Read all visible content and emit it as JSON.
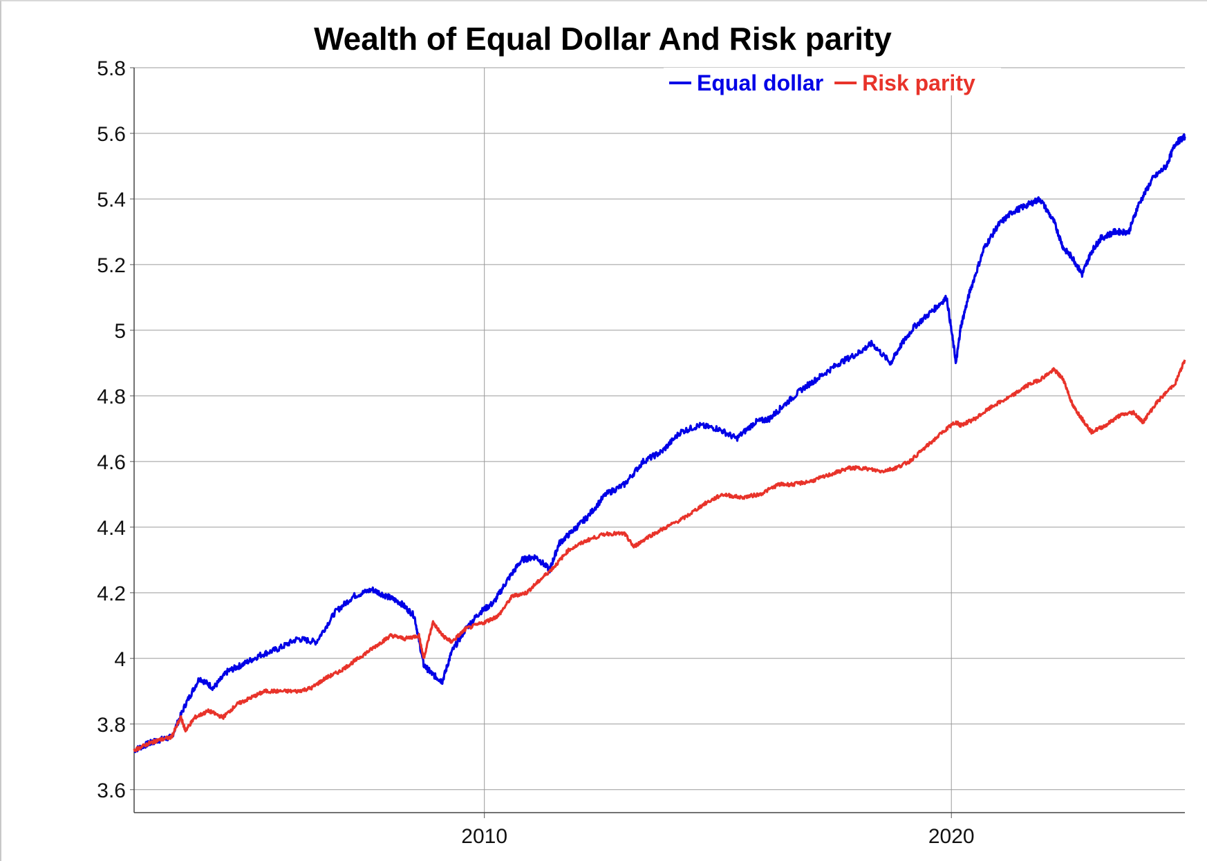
{
  "chart_data": {
    "type": "line",
    "title": "Wealth of Equal Dollar And Risk parity",
    "xlabel": "",
    "ylabel": "",
    "xlim": [
      2002.5,
      2025.0
    ],
    "ylim": [
      3.53,
      5.8
    ],
    "y_ticks": [
      3.6,
      3.8,
      4.0,
      4.2,
      4.4,
      4.6,
      4.8,
      5.0,
      5.2,
      5.4,
      5.6,
      5.8
    ],
    "y_tick_labels": [
      "3.6",
      "3.8",
      "4",
      "4.2",
      "4.4",
      "4.6",
      "4.8",
      "5",
      "5.2",
      "5.4",
      "5.6",
      "5.8"
    ],
    "x_ticks": [
      2010,
      2020
    ],
    "x_tick_labels": [
      "2010",
      "2020"
    ],
    "grid": true,
    "legend_position": "top-right",
    "series": [
      {
        "name": "Equal dollar",
        "color": "#0000e6",
        "x": [
          2002.5,
          2002.8,
          2003.0,
          2003.3,
          2003.6,
          2003.9,
          2004.2,
          2004.5,
          2004.8,
          2005.2,
          2005.6,
          2006.0,
          2006.4,
          2006.8,
          2007.2,
          2007.6,
          2007.9,
          2008.2,
          2008.5,
          2008.7,
          2008.9,
          2009.1,
          2009.3,
          2009.6,
          2009.9,
          2010.2,
          2010.5,
          2010.8,
          2011.1,
          2011.4,
          2011.6,
          2011.9,
          2012.2,
          2012.6,
          2013.0,
          2013.4,
          2013.8,
          2014.2,
          2014.6,
          2015.0,
          2015.4,
          2015.8,
          2016.1,
          2016.4,
          2016.8,
          2017.2,
          2017.6,
          2018.0,
          2018.3,
          2018.7,
          2018.9,
          2019.2,
          2019.6,
          2019.9,
          2020.1,
          2020.2,
          2020.4,
          2020.7,
          2021.0,
          2021.3,
          2021.6,
          2021.9,
          2022.2,
          2022.4,
          2022.6,
          2022.8,
          2023.0,
          2023.2,
          2023.5,
          2023.8,
          2024.0,
          2024.3,
          2024.6,
          2024.8,
          2025.0
        ],
        "values": [
          3.72,
          3.74,
          3.75,
          3.76,
          3.86,
          3.94,
          3.91,
          3.96,
          3.98,
          4.01,
          4.03,
          4.06,
          4.05,
          4.14,
          4.19,
          4.21,
          4.19,
          4.17,
          4.13,
          3.98,
          3.95,
          3.93,
          4.02,
          4.09,
          4.14,
          4.17,
          4.24,
          4.3,
          4.31,
          4.27,
          4.35,
          4.39,
          4.43,
          4.5,
          4.53,
          4.6,
          4.63,
          4.69,
          4.71,
          4.7,
          4.67,
          4.72,
          4.73,
          4.77,
          4.82,
          4.86,
          4.9,
          4.93,
          4.96,
          4.9,
          4.95,
          5.01,
          5.06,
          5.1,
          4.9,
          5.01,
          5.12,
          5.25,
          5.32,
          5.36,
          5.38,
          5.4,
          5.33,
          5.25,
          5.22,
          5.17,
          5.24,
          5.28,
          5.3,
          5.3,
          5.38,
          5.46,
          5.5,
          5.57,
          5.59
        ]
      },
      {
        "name": "Risk parity",
        "color": "#e8332a",
        "x": [
          2002.5,
          2002.8,
          2003.0,
          2003.3,
          2003.5,
          2003.6,
          2003.8,
          2004.1,
          2004.4,
          2004.7,
          2005.0,
          2005.3,
          2005.6,
          2006.0,
          2006.3,
          2006.6,
          2006.9,
          2007.2,
          2007.5,
          2007.8,
          2008.0,
          2008.3,
          2008.6,
          2008.7,
          2008.9,
          2009.1,
          2009.3,
          2009.6,
          2010.0,
          2010.3,
          2010.6,
          2010.9,
          2011.2,
          2011.5,
          2011.8,
          2012.2,
          2012.6,
          2013.0,
          2013.2,
          2013.5,
          2013.9,
          2014.3,
          2014.7,
          2015.1,
          2015.5,
          2015.9,
          2016.3,
          2016.6,
          2017.0,
          2017.4,
          2017.8,
          2018.1,
          2018.5,
          2018.8,
          2019.1,
          2019.5,
          2019.9,
          2020.1,
          2020.2,
          2020.5,
          2020.9,
          2021.3,
          2021.6,
          2021.9,
          2022.2,
          2022.4,
          2022.6,
          2022.8,
          2023.0,
          2023.3,
          2023.6,
          2023.9,
          2024.1,
          2024.4,
          2024.8,
          2025.0
        ],
        "values": [
          3.72,
          3.74,
          3.75,
          3.76,
          3.82,
          3.78,
          3.82,
          3.84,
          3.82,
          3.86,
          3.88,
          3.9,
          3.9,
          3.9,
          3.91,
          3.94,
          3.96,
          3.99,
          4.02,
          4.05,
          4.07,
          4.06,
          4.07,
          4.0,
          4.11,
          4.07,
          4.05,
          4.09,
          4.11,
          4.13,
          4.19,
          4.2,
          4.24,
          4.28,
          4.33,
          4.36,
          4.38,
          4.38,
          4.34,
          4.37,
          4.4,
          4.43,
          4.47,
          4.5,
          4.49,
          4.5,
          4.53,
          4.53,
          4.54,
          4.56,
          4.58,
          4.58,
          4.57,
          4.58,
          4.6,
          4.65,
          4.7,
          4.72,
          4.71,
          4.73,
          4.77,
          4.8,
          4.83,
          4.85,
          4.88,
          4.85,
          4.77,
          4.73,
          4.69,
          4.71,
          4.74,
          4.75,
          4.72,
          4.78,
          4.84,
          4.91
        ]
      }
    ]
  }
}
